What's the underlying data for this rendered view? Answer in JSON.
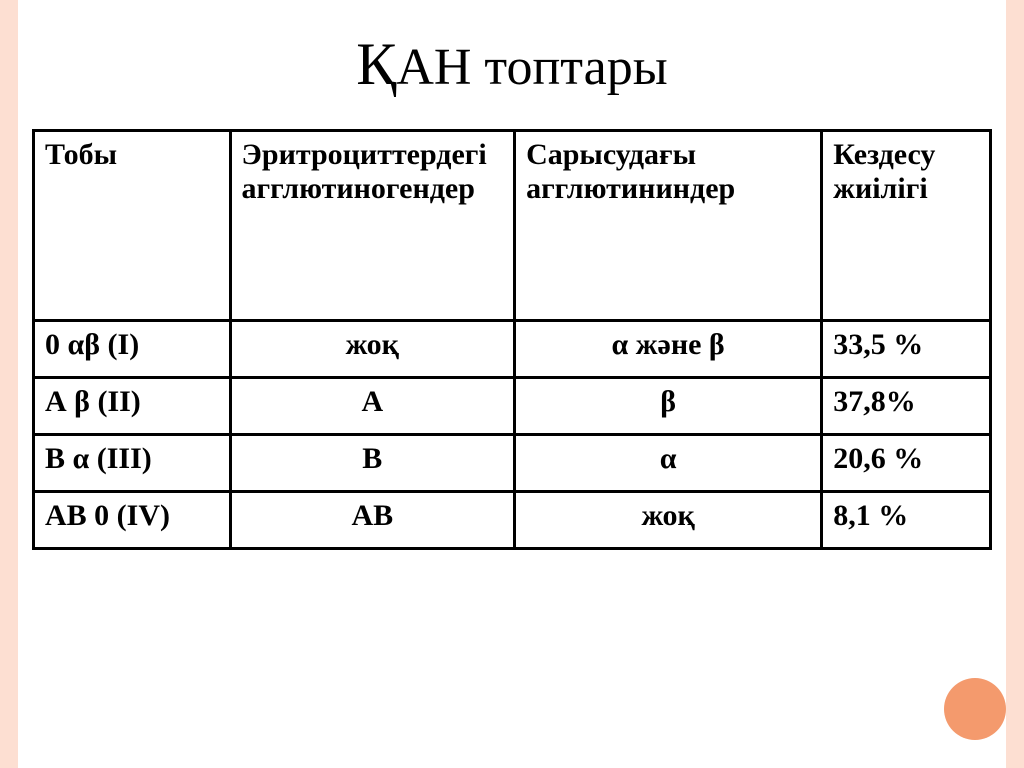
{
  "title_drop": "Қ",
  "title_rest": "АН топтары",
  "table": {
    "border_color": "#000000",
    "bg_color": "#ffffff",
    "accent_color": "#fddfd2",
    "circle_color": "#f49a6d",
    "headers": {
      "c0": "Тобы",
      "c1": "Эритроциттердегі агглютиногендер",
      "c2": "Сарысудағы агглютининдер",
      "c3": "Кездесу жиілігі"
    },
    "rows": [
      {
        "group": "0 αβ (I)",
        "agglutinogens": "жоқ",
        "agglutinins": "α  және  β",
        "freq": "33,5 %"
      },
      {
        "group": "А β (II)",
        "agglutinogens": "А",
        "agglutinins": "β",
        "freq": "37,8%"
      },
      {
        "group": "В α (III)",
        "agglutinogens": "В",
        "agglutinins": "α",
        "freq": "20,6 %"
      },
      {
        "group": "АВ 0 (IV)",
        "agglutinogens": "АВ",
        "agglutinins": "жоқ",
        "freq": "8,1 %"
      }
    ]
  }
}
